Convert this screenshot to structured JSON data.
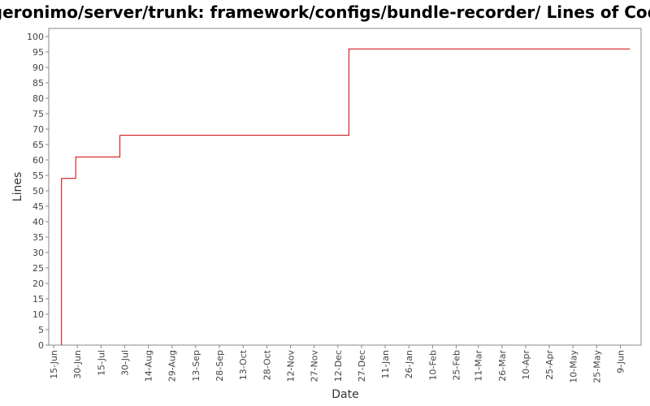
{
  "chart_data": {
    "type": "line",
    "step": true,
    "title": "/geronimo/server/trunk: framework/configs/bundle-recorder/ Lines of Code",
    "xlabel": "Date",
    "ylabel": "Lines",
    "ylim": [
      0,
      100
    ],
    "y_ticks": [
      0,
      5,
      10,
      15,
      20,
      25,
      30,
      35,
      40,
      45,
      50,
      55,
      60,
      65,
      70,
      75,
      80,
      85,
      90,
      95,
      100
    ],
    "x_tick_labels": [
      "15-Jun",
      "30-Jun",
      "15-Jul",
      "30-Jul",
      "14-Aug",
      "29-Aug",
      "13-Sep",
      "28-Sep",
      "13-Oct",
      "28-Oct",
      "12-Nov",
      "27-Nov",
      "12-Dec",
      "27-Dec",
      "11-Jan",
      "26-Jan",
      "10-Feb",
      "25-Feb",
      "11-Mar",
      "26-Mar",
      "10-Apr",
      "25-Apr",
      "10-May",
      "25-May",
      "9-Jun"
    ],
    "grid": false,
    "line_color": "#cc0000",
    "series": [
      {
        "points": [
          {
            "x": "20-Jun",
            "y": 0
          },
          {
            "x": "20-Jun",
            "y": 54
          },
          {
            "x": "29-Jun",
            "y": 54
          },
          {
            "x": "29-Jun",
            "y": 61
          },
          {
            "x": "27-Jul",
            "y": 61
          },
          {
            "x": "27-Jul",
            "y": 68
          },
          {
            "x": "19-Dec",
            "y": 68
          },
          {
            "x": "19-Dec",
            "y": 96
          },
          {
            "x": "15-Jun",
            "y": 96
          }
        ]
      }
    ]
  }
}
